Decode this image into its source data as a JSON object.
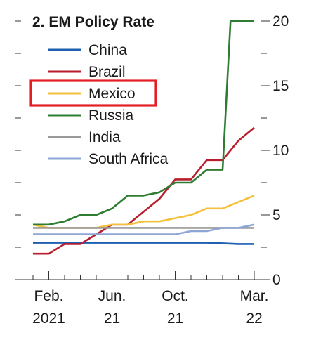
{
  "chart_data": {
    "type": "line",
    "title": "2. EM Policy Rate",
    "xlabel": "",
    "ylabel": "",
    "x_ticks": [
      {
        "label": "Feb.",
        "sub": "2021",
        "x": 1
      },
      {
        "label": "Jun.",
        "sub": "21",
        "x": 5
      },
      {
        "label": "Oct.",
        "sub": "21",
        "x": 9
      },
      {
        "label": "Mar.",
        "sub": "22",
        "x": 14
      }
    ],
    "xlim": [
      0,
      14
    ],
    "ylim": [
      0,
      20
    ],
    "y_ticks": [
      0,
      5,
      10,
      15,
      20
    ],
    "y_axis_side": "right",
    "grid": false,
    "legend_placement": "top-left",
    "highlighted_legend_entry": "Mexico",
    "highlight_color": "#e31e24",
    "series": [
      {
        "name": "China",
        "color": "#1f5fb0",
        "x": [
          0,
          1,
          2,
          3,
          4,
          5,
          6,
          7,
          8,
          9,
          10,
          11,
          12,
          13,
          14
        ],
        "values": [
          2.85,
          2.85,
          2.85,
          2.85,
          2.85,
          2.85,
          2.85,
          2.85,
          2.85,
          2.85,
          2.85,
          2.85,
          2.8,
          2.75,
          2.75
        ]
      },
      {
        "name": "Brazil",
        "color": "#b81e2d",
        "x": [
          0,
          1,
          2,
          3,
          4,
          5,
          6,
          7,
          8,
          9,
          10,
          11,
          12,
          13,
          14
        ],
        "values": [
          2.0,
          2.0,
          2.75,
          2.75,
          3.5,
          4.25,
          4.25,
          5.25,
          6.25,
          7.75,
          7.75,
          9.25,
          9.25,
          10.75,
          11.75
        ]
      },
      {
        "name": "Mexico",
        "color": "#f5c13c",
        "x": [
          0,
          1,
          2,
          3,
          4,
          5,
          6,
          7,
          8,
          9,
          10,
          11,
          12,
          13,
          14
        ],
        "values": [
          4.25,
          4.0,
          4.0,
          4.0,
          4.0,
          4.25,
          4.25,
          4.5,
          4.5,
          4.75,
          5.0,
          5.5,
          5.5,
          6.0,
          6.5
        ]
      },
      {
        "name": "Russia",
        "color": "#2e7d32",
        "x": [
          0,
          1,
          2,
          3,
          4,
          5,
          6,
          7,
          8,
          9,
          10,
          11,
          12,
          12.5,
          13,
          14
        ],
        "values": [
          4.25,
          4.25,
          4.5,
          5.0,
          5.0,
          5.5,
          6.5,
          6.5,
          6.75,
          7.5,
          7.5,
          8.5,
          8.5,
          20,
          20,
          20
        ]
      },
      {
        "name": "India",
        "color": "#999999",
        "x": [
          0,
          1,
          2,
          3,
          4,
          5,
          6,
          7,
          8,
          9,
          10,
          11,
          12,
          13,
          14
        ],
        "values": [
          4.0,
          4.0,
          4.0,
          4.0,
          4.0,
          4.0,
          4.0,
          4.0,
          4.0,
          4.0,
          4.0,
          4.0,
          4.0,
          4.0,
          4.0
        ]
      },
      {
        "name": "South Africa",
        "color": "#8ea6d6",
        "x": [
          0,
          1,
          2,
          3,
          4,
          5,
          6,
          7,
          8,
          9,
          10,
          11,
          12,
          13,
          14
        ],
        "values": [
          3.5,
          3.5,
          3.5,
          3.5,
          3.5,
          3.5,
          3.5,
          3.5,
          3.5,
          3.5,
          3.75,
          3.75,
          4.0,
          4.0,
          4.25
        ]
      }
    ]
  }
}
